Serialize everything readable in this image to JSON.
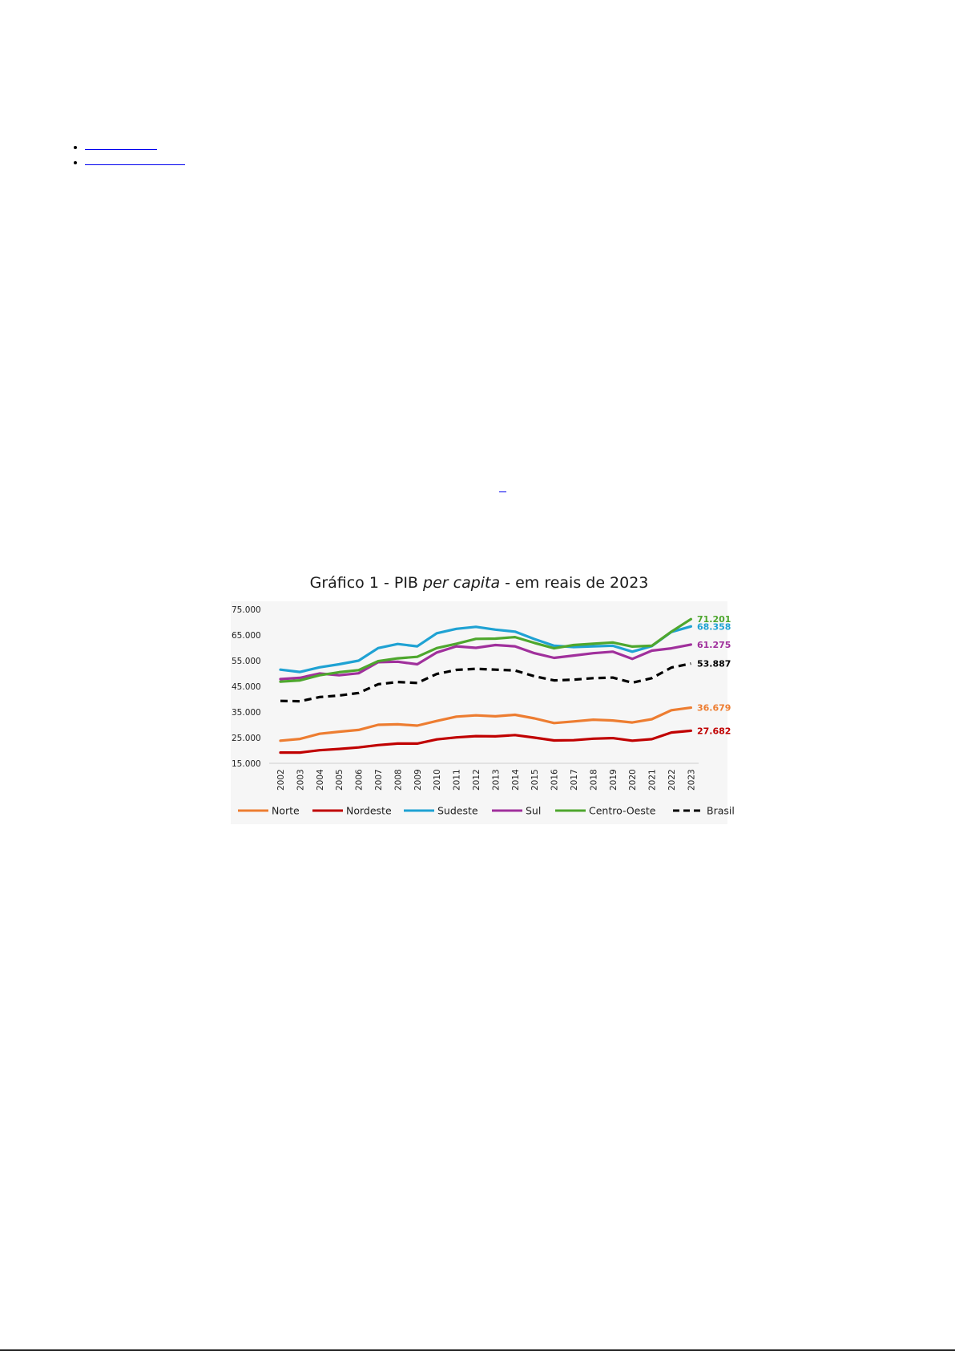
{
  "links": [
    "",
    ""
  ],
  "footnote_ref": "",
  "colors": {
    "norte": "#ED7D31",
    "nordeste": "#C00000",
    "sudeste": "#1FA2D3",
    "sul": "#A0309C",
    "centro_oeste": "#4EA72E",
    "brasil": "#000000"
  },
  "chart_data": {
    "type": "line",
    "title_parts": [
      "Gráfico 1 - PIB ",
      "per capita",
      " - em reais de 2023"
    ],
    "xlabel": "",
    "ylabel": "",
    "ylim": [
      15000,
      75000
    ],
    "yticks": [
      15000,
      25000,
      35000,
      45000,
      55000,
      65000,
      75000
    ],
    "ytick_labels": [
      "15.000",
      "25.000",
      "35.000",
      "45.000",
      "55.000",
      "65.000",
      "75.000"
    ],
    "grid": false,
    "legend_position": "bottom",
    "x": [
      "2002",
      "2003",
      "2004",
      "2005",
      "2006",
      "2007",
      "2008",
      "2009",
      "2010",
      "2011",
      "2012",
      "2013",
      "2014",
      "2015",
      "2016",
      "2017",
      "2018",
      "2019",
      "2020",
      "2021",
      "2022",
      "2023"
    ],
    "series": [
      {
        "name": "Norte",
        "color": "#ED7D31",
        "dashed": false,
        "end_label": "36.679",
        "values": [
          23800,
          24500,
          26500,
          27300,
          28000,
          30000,
          30200,
          29700,
          31500,
          33200,
          33700,
          33300,
          33900,
          32500,
          30700,
          31300,
          32000,
          31700,
          30900,
          32200,
          35700,
          36679
        ]
      },
      {
        "name": "Nordeste",
        "color": "#C00000",
        "dashed": false,
        "end_label": "27.682",
        "values": [
          19200,
          19200,
          20100,
          20600,
          21200,
          22100,
          22700,
          22700,
          24300,
          25100,
          25600,
          25500,
          26000,
          25000,
          23900,
          24000,
          24600,
          24800,
          23800,
          24400,
          27000,
          27682
        ]
      },
      {
        "name": "Sudeste",
        "color": "#1FA2D3",
        "dashed": false,
        "end_label": "68.358",
        "values": [
          51500,
          50600,
          52400,
          53600,
          55000,
          59900,
          61500,
          60600,
          65700,
          67400,
          68200,
          67100,
          66300,
          63400,
          60800,
          60300,
          60600,
          60800,
          58500,
          60700,
          66200,
          68358
        ]
      },
      {
        "name": "Sul",
        "color": "#A0309C",
        "dashed": false,
        "end_label": "61.275",
        "values": [
          47800,
          48300,
          50000,
          49300,
          50100,
          54400,
          54600,
          53600,
          58200,
          60600,
          60000,
          61100,
          60600,
          57900,
          56100,
          57000,
          57900,
          58500,
          55700,
          58900,
          59800,
          61275
        ]
      },
      {
        "name": "Centro-Oeste",
        "color": "#4EA72E",
        "dashed": false,
        "end_label": "71.201",
        "values": [
          46800,
          47300,
          49300,
          50500,
          51300,
          54800,
          55900,
          56500,
          59900,
          61600,
          63500,
          63600,
          64200,
          61900,
          59800,
          61100,
          61600,
          62100,
          60500,
          60800,
          66300,
          71201
        ]
      },
      {
        "name": "Brasil",
        "color": "#000000",
        "dashed": true,
        "end_label": "53.887",
        "values": [
          39300,
          39200,
          40800,
          41400,
          42400,
          45800,
          46700,
          46300,
          49800,
          51400,
          51800,
          51500,
          51200,
          48900,
          47300,
          47600,
          48200,
          48400,
          46400,
          48200,
          52300,
          53887
        ]
      }
    ]
  }
}
